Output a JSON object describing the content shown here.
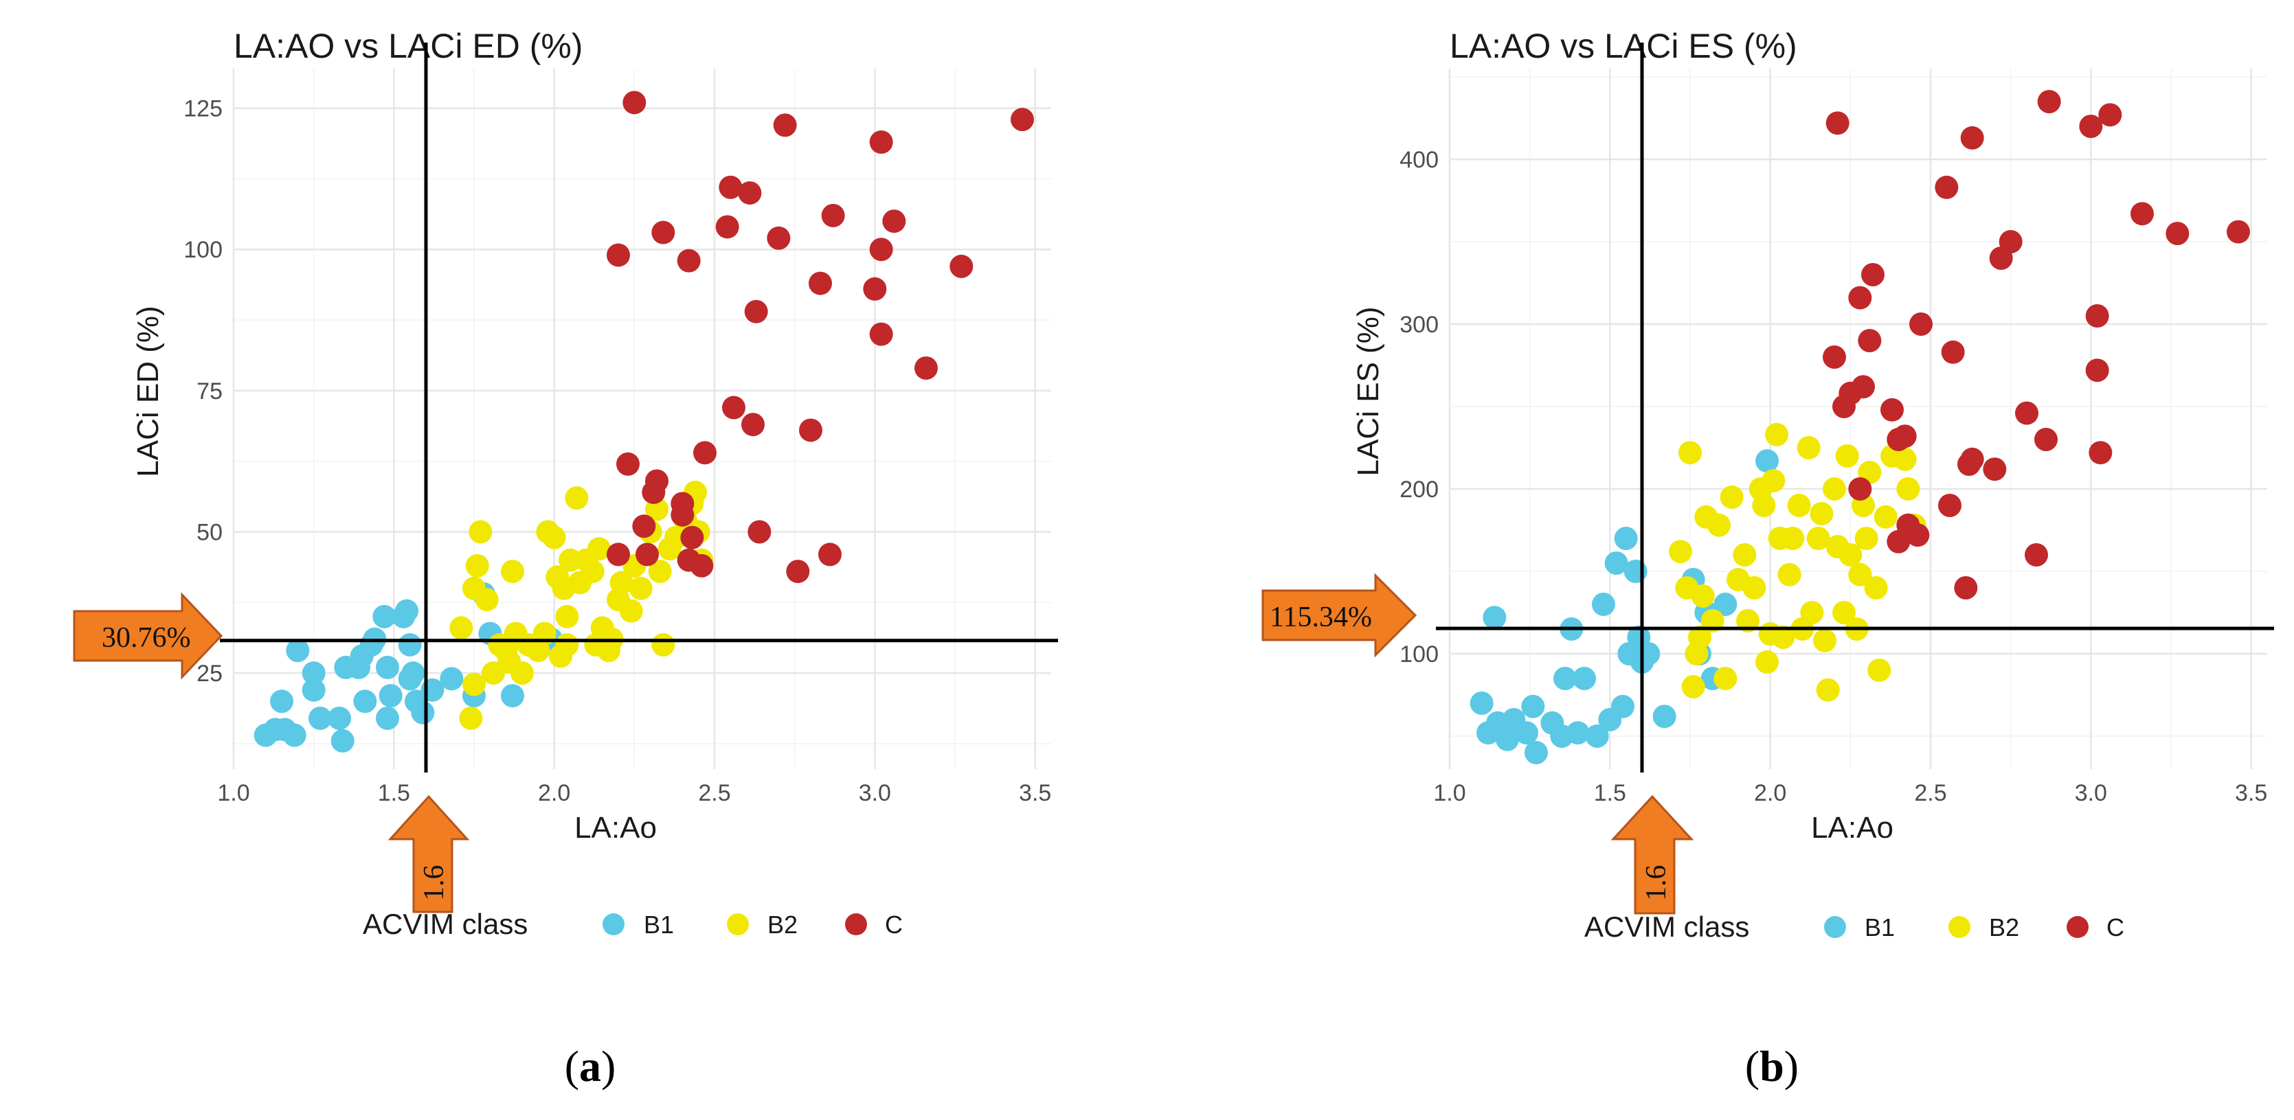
{
  "colors": {
    "B1": "#5bc8e6",
    "B2": "#f0e800",
    "C": "#c0282a",
    "arrow_fill": "#f07d22",
    "arrow_stroke": "#b5541a"
  },
  "legend": {
    "title": "ACVIM class",
    "labels": [
      "B1",
      "B2",
      "C"
    ]
  },
  "panels": [
    {
      "panel_label_open": "(",
      "panel_label_letter": "a",
      "panel_label_close": ")",
      "x_threshold_label": "1.6",
      "y_threshold_label": "30.76%"
    },
    {
      "panel_label_open": "(",
      "panel_label_letter": "b",
      "panel_label_close": ")",
      "x_threshold_label": "1.6",
      "y_threshold_label": "115.34%"
    }
  ],
  "chart_data": [
    {
      "type": "scatter",
      "title": "LA:AO vs LACi ED (%)",
      "xlabel": "LA:Ao",
      "ylabel": "LACi ED (%)",
      "xlim": [
        1.0,
        3.55
      ],
      "ylim": [
        8,
        132
      ],
      "xticks": [
        1.0,
        1.5,
        2.0,
        2.5,
        3.0,
        3.5
      ],
      "xtick_labels": [
        "1.0",
        "1.5",
        "2.0",
        "2.5",
        "3.0",
        "3.5"
      ],
      "yticks": [
        25,
        50,
        75,
        100,
        125
      ],
      "ytick_labels": [
        "25",
        "50",
        "75",
        "100",
        "125"
      ],
      "x_threshold": 1.6,
      "y_threshold": 30.76,
      "series": [
        {
          "name": "B1",
          "points": [
            [
              1.1,
              14
            ],
            [
              1.13,
              15
            ],
            [
              1.16,
              15
            ],
            [
              1.19,
              14
            ],
            [
              1.15,
              20
            ],
            [
              1.2,
              29
            ],
            [
              1.25,
              25
            ],
            [
              1.25,
              22
            ],
            [
              1.27,
              17
            ],
            [
              1.33,
              17
            ],
            [
              1.34,
              13
            ],
            [
              1.35,
              26
            ],
            [
              1.39,
              26
            ],
            [
              1.4,
              28
            ],
            [
              1.41,
              20
            ],
            [
              1.43,
              30
            ],
            [
              1.44,
              31
            ],
            [
              1.47,
              35
            ],
            [
              1.48,
              26
            ],
            [
              1.49,
              21
            ],
            [
              1.48,
              17
            ],
            [
              1.53,
              35
            ],
            [
              1.54,
              36
            ],
            [
              1.55,
              30
            ],
            [
              1.55,
              24
            ],
            [
              1.56,
              25
            ],
            [
              1.57,
              20
            ],
            [
              1.59,
              18
            ],
            [
              1.62,
              22
            ],
            [
              1.68,
              24
            ],
            [
              1.75,
              21
            ],
            [
              1.78,
              39
            ],
            [
              1.8,
              32
            ],
            [
              1.87,
              21
            ],
            [
              1.99,
              31
            ]
          ]
        },
        {
          "name": "B2",
          "points": [
            [
              1.71,
              33
            ],
            [
              1.74,
              17
            ],
            [
              1.75,
              23
            ],
            [
              1.75,
              40
            ],
            [
              1.76,
              44
            ],
            [
              1.77,
              50
            ],
            [
              1.79,
              38
            ],
            [
              1.81,
              25
            ],
            [
              1.83,
              30
            ],
            [
              1.85,
              29
            ],
            [
              1.86,
              27
            ],
            [
              1.87,
              43
            ],
            [
              1.88,
              32
            ],
            [
              1.9,
              25
            ],
            [
              1.92,
              30
            ],
            [
              1.95,
              29
            ],
            [
              1.97,
              32
            ],
            [
              1.98,
              50
            ],
            [
              2.0,
              49
            ],
            [
              2.01,
              42
            ],
            [
              2.02,
              28
            ],
            [
              2.03,
              40
            ],
            [
              2.04,
              30
            ],
            [
              2.04,
              35
            ],
            [
              2.05,
              45
            ],
            [
              2.07,
              56
            ],
            [
              2.08,
              41
            ],
            [
              2.1,
              45
            ],
            [
              2.12,
              43
            ],
            [
              2.13,
              30
            ],
            [
              2.14,
              47
            ],
            [
              2.15,
              33
            ],
            [
              2.17,
              29
            ],
            [
              2.18,
              31
            ],
            [
              2.2,
              38
            ],
            [
              2.21,
              41
            ],
            [
              2.24,
              36
            ],
            [
              2.25,
              44
            ],
            [
              2.27,
              40
            ],
            [
              2.29,
              46
            ],
            [
              2.3,
              50
            ],
            [
              2.32,
              54
            ],
            [
              2.33,
              43
            ],
            [
              2.34,
              30
            ],
            [
              2.36,
              47
            ],
            [
              2.38,
              49
            ],
            [
              2.41,
              52
            ],
            [
              2.43,
              55
            ],
            [
              2.44,
              57
            ],
            [
              2.45,
              50
            ],
            [
              2.46,
              45
            ]
          ]
        },
        {
          "name": "C",
          "points": [
            [
              2.2,
              99
            ],
            [
              2.2,
              46
            ],
            [
              2.23,
              62
            ],
            [
              2.25,
              126
            ],
            [
              2.28,
              51
            ],
            [
              2.29,
              46
            ],
            [
              2.31,
              57
            ],
            [
              2.32,
              59
            ],
            [
              2.34,
              103
            ],
            [
              2.4,
              55
            ],
            [
              2.4,
              53
            ],
            [
              2.42,
              98
            ],
            [
              2.42,
              45
            ],
            [
              2.43,
              49
            ],
            [
              2.46,
              44
            ],
            [
              2.47,
              64
            ],
            [
              2.54,
              104
            ],
            [
              2.55,
              111
            ],
            [
              2.56,
              72
            ],
            [
              2.61,
              110
            ],
            [
              2.62,
              69
            ],
            [
              2.63,
              89
            ],
            [
              2.64,
              50
            ],
            [
              2.7,
              102
            ],
            [
              2.72,
              122
            ],
            [
              2.76,
              43
            ],
            [
              2.8,
              68
            ],
            [
              2.83,
              94
            ],
            [
              2.86,
              46
            ],
            [
              2.87,
              106
            ],
            [
              3.0,
              93
            ],
            [
              3.02,
              85
            ],
            [
              3.02,
              100
            ],
            [
              3.02,
              119
            ],
            [
              3.06,
              105
            ],
            [
              3.16,
              79
            ],
            [
              3.27,
              97
            ],
            [
              3.46,
              123
            ]
          ]
        }
      ]
    },
    {
      "type": "scatter",
      "title": "LA:AO vs LACi ES (%)",
      "xlabel": "LA:Ao",
      "ylabel": "LACi ES (%)",
      "xlim": [
        1.0,
        3.55
      ],
      "ylim": [
        30,
        455
      ],
      "xticks": [
        1.0,
        1.5,
        2.0,
        2.5,
        3.0,
        3.5
      ],
      "xtick_labels": [
        "1.0",
        "1.5",
        "2.0",
        "2.5",
        "3.0",
        "3.5"
      ],
      "yticks": [
        100,
        200,
        300,
        400
      ],
      "ytick_labels": [
        "100",
        "200",
        "300",
        "400"
      ],
      "x_threshold": 1.6,
      "y_threshold": 115.34,
      "series": [
        {
          "name": "B1",
          "points": [
            [
              1.1,
              70
            ],
            [
              1.12,
              52
            ],
            [
              1.14,
              122
            ],
            [
              1.15,
              58
            ],
            [
              1.18,
              48
            ],
            [
              1.2,
              60
            ],
            [
              1.24,
              52
            ],
            [
              1.26,
              68
            ],
            [
              1.27,
              40
            ],
            [
              1.32,
              58
            ],
            [
              1.35,
              50
            ],
            [
              1.36,
              85
            ],
            [
              1.38,
              115
            ],
            [
              1.4,
              52
            ],
            [
              1.42,
              85
            ],
            [
              1.46,
              50
            ],
            [
              1.48,
              130
            ],
            [
              1.5,
              60
            ],
            [
              1.52,
              155
            ],
            [
              1.54,
              68
            ],
            [
              1.55,
              170
            ],
            [
              1.56,
              100
            ],
            [
              1.58,
              150
            ],
            [
              1.59,
              110
            ],
            [
              1.6,
              95
            ],
            [
              1.62,
              100
            ],
            [
              1.67,
              62
            ],
            [
              1.76,
              145
            ],
            [
              1.78,
              100
            ],
            [
              1.8,
              125
            ],
            [
              1.82,
              85
            ],
            [
              1.86,
              130
            ],
            [
              1.99,
              217
            ]
          ]
        },
        {
          "name": "B2",
          "points": [
            [
              1.72,
              162
            ],
            [
              1.74,
              140
            ],
            [
              1.75,
              222
            ],
            [
              1.76,
              80
            ],
            [
              1.77,
              100
            ],
            [
              1.78,
              110
            ],
            [
              1.79,
              135
            ],
            [
              1.8,
              183
            ],
            [
              1.82,
              120
            ],
            [
              1.84,
              178
            ],
            [
              1.86,
              85
            ],
            [
              1.88,
              195
            ],
            [
              1.9,
              145
            ],
            [
              1.92,
              160
            ],
            [
              1.93,
              120
            ],
            [
              1.95,
              140
            ],
            [
              1.97,
              200
            ],
            [
              1.98,
              190
            ],
            [
              1.99,
              95
            ],
            [
              2.0,
              112
            ],
            [
              2.01,
              205
            ],
            [
              2.02,
              233
            ],
            [
              2.03,
              170
            ],
            [
              2.04,
              110
            ],
            [
              2.06,
              148
            ],
            [
              2.07,
              170
            ],
            [
              2.09,
              190
            ],
            [
              2.1,
              115
            ],
            [
              2.12,
              225
            ],
            [
              2.13,
              125
            ],
            [
              2.15,
              170
            ],
            [
              2.16,
              185
            ],
            [
              2.17,
              108
            ],
            [
              2.18,
              78
            ],
            [
              2.2,
              200
            ],
            [
              2.21,
              165
            ],
            [
              2.23,
              125
            ],
            [
              2.24,
              220
            ],
            [
              2.25,
              160
            ],
            [
              2.27,
              115
            ],
            [
              2.28,
              148
            ],
            [
              2.29,
              190
            ],
            [
              2.3,
              170
            ],
            [
              2.31,
              210
            ],
            [
              2.33,
              140
            ],
            [
              2.34,
              90
            ],
            [
              2.36,
              183
            ],
            [
              2.38,
              220
            ],
            [
              2.4,
              230
            ],
            [
              2.42,
              218
            ],
            [
              2.43,
              200
            ],
            [
              2.45,
              178
            ]
          ]
        },
        {
          "name": "C",
          "points": [
            [
              2.2,
              280
            ],
            [
              2.21,
              422
            ],
            [
              2.23,
              250
            ],
            [
              2.25,
              258
            ],
            [
              2.28,
              316
            ],
            [
              2.28,
              200
            ],
            [
              2.29,
              262
            ],
            [
              2.31,
              290
            ],
            [
              2.32,
              330
            ],
            [
              2.38,
              248
            ],
            [
              2.4,
              230
            ],
            [
              2.4,
              168
            ],
            [
              2.42,
              232
            ],
            [
              2.43,
              178
            ],
            [
              2.46,
              172
            ],
            [
              2.47,
              300
            ],
            [
              2.55,
              383
            ],
            [
              2.56,
              190
            ],
            [
              2.57,
              283
            ],
            [
              2.61,
              140
            ],
            [
              2.62,
              215
            ],
            [
              2.63,
              218
            ],
            [
              2.63,
              413
            ],
            [
              2.7,
              212
            ],
            [
              2.72,
              340
            ],
            [
              2.75,
              350
            ],
            [
              2.8,
              246
            ],
            [
              2.83,
              160
            ],
            [
              2.86,
              230
            ],
            [
              2.87,
              435
            ],
            [
              3.0,
              420
            ],
            [
              3.02,
              305
            ],
            [
              3.02,
              272
            ],
            [
              3.03,
              222
            ],
            [
              3.06,
              427
            ],
            [
              3.16,
              367
            ],
            [
              3.27,
              355
            ],
            [
              3.46,
              356
            ]
          ]
        }
      ]
    }
  ]
}
